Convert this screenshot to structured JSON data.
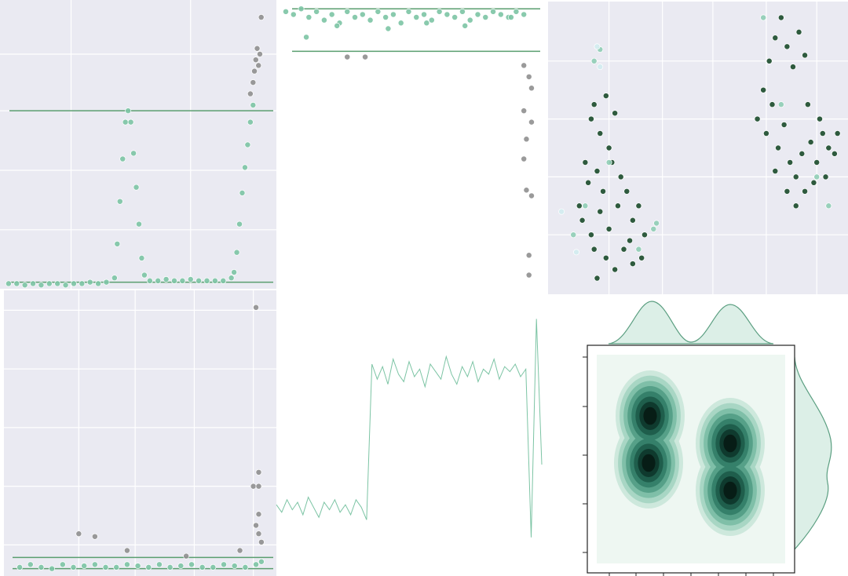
{
  "chart_data": [
    {
      "type": "scatter",
      "background": "#eaeaf2",
      "grid": true,
      "xlim": [
        0,
        100
      ],
      "ylim": [
        0,
        100
      ],
      "xticks": [
        25,
        69
      ],
      "yticks": [
        20,
        41,
        62,
        82
      ],
      "hlines": [
        62,
        1.5
      ],
      "hline_color": "#5a9e6f",
      "series": [
        {
          "color": "#7cc4a4",
          "x": [
            2,
            5,
            8,
            11,
            14,
            17,
            20,
            23,
            26,
            29,
            32,
            35,
            38,
            41,
            42,
            43,
            44,
            45,
            46,
            47,
            48,
            49,
            50,
            51,
            52,
            54,
            57,
            60,
            63,
            66,
            69,
            72,
            75,
            78,
            81,
            84,
            85,
            86,
            87,
            88,
            89,
            90,
            91,
            92
          ],
          "values": [
            1,
            1,
            0.5,
            1,
            0.5,
            1,
            1,
            0.5,
            1,
            1,
            1.5,
            1,
            1.5,
            3,
            15,
            30,
            45,
            58,
            62,
            58,
            47,
            35,
            22,
            10,
            4,
            2,
            2,
            2.5,
            2,
            2,
            2.5,
            2,
            2,
            2,
            2,
            3,
            5,
            12,
            22,
            33,
            42,
            50,
            58,
            64
          ]
        },
        {
          "color": "#8f8f8f",
          "x": [
            91,
            92,
            92.5,
            93,
            93.5,
            94,
            94.5,
            95
          ],
          "values": [
            68,
            72,
            76,
            80,
            84,
            78,
            82,
            95
          ]
        }
      ]
    },
    {
      "type": "scatter",
      "background": "#ffffff",
      "grid": false,
      "xlim": [
        0,
        100
      ],
      "ylim": [
        0,
        100
      ],
      "hlines": [
        98,
        83
      ],
      "hline_color": "#5a9e6f",
      "series": [
        {
          "color": "#7cc4a4",
          "x": [
            0,
            3,
            6,
            9,
            12,
            15,
            18,
            21,
            24,
            27,
            30,
            33,
            36,
            39,
            42,
            45,
            48,
            51,
            54,
            57,
            60,
            63,
            66,
            69,
            72,
            75,
            78,
            81,
            84,
            87,
            90,
            93,
            8,
            20,
            40,
            55,
            70,
            88
          ],
          "values": [
            97,
            96,
            98,
            95,
            97,
            94,
            96,
            93,
            97,
            95,
            96,
            94,
            97,
            95,
            96,
            93,
            97,
            95,
            96,
            94,
            97,
            96,
            95,
            97,
            94,
            96,
            95,
            97,
            96,
            95,
            97,
            96,
            88,
            92,
            91,
            93,
            92,
            95
          ]
        },
        {
          "color": "#8f8f8f",
          "x": [
            24,
            31,
            93,
            95,
            96,
            93,
            96,
            94,
            93,
            94,
            96,
            95,
            95
          ],
          "values": [
            81,
            81,
            78,
            74,
            70,
            62,
            58,
            52,
            45,
            34,
            32,
            11,
            4
          ]
        }
      ]
    },
    {
      "type": "scatter",
      "background": "#eaeaf2",
      "grid": true,
      "xlim": [
        0,
        100
      ],
      "ylim": [
        0,
        100
      ],
      "xticks": [
        20,
        38,
        55,
        73,
        90
      ],
      "yticks": [
        20,
        40,
        60,
        80
      ],
      "series": [
        {
          "color": "#1a4a2a",
          "x": [
            10,
            12,
            14,
            15,
            17,
            19,
            20,
            22,
            13,
            16,
            18,
            21,
            24,
            11,
            14,
            17,
            20,
            23,
            26,
            28,
            30,
            32,
            25,
            28,
            22,
            19,
            16,
            15,
            27,
            31
          ],
          "values": [
            30,
            45,
            60,
            65,
            55,
            68,
            50,
            62,
            38,
            42,
            35,
            45,
            40,
            25,
            20,
            28,
            22,
            30,
            35,
            25,
            30,
            20,
            15,
            10,
            8,
            12,
            5,
            15,
            18,
            12
          ]
        },
        {
          "color": "#1a4a2a",
          "x": [
            70,
            72,
            74,
            76,
            78,
            80,
            82,
            84,
            86,
            73,
            75,
            77,
            79,
            81,
            83,
            85,
            88,
            90,
            92,
            94,
            96,
            89,
            86,
            83,
            91,
            87,
            80,
            76,
            93,
            97
          ],
          "values": [
            60,
            70,
            80,
            88,
            95,
            85,
            78,
            90,
            82,
            55,
            65,
            50,
            58,
            45,
            40,
            48,
            52,
            45,
            55,
            50,
            48,
            38,
            35,
            30,
            60,
            65,
            35,
            42,
            40,
            55
          ]
        },
        {
          "color": "#8fcdb5",
          "x": [
            15,
            17,
            30,
            12,
            8,
            20,
            72,
            78,
            90,
            94,
            35,
            36
          ],
          "values": [
            80,
            84,
            15,
            30,
            20,
            45,
            95,
            65,
            40,
            30,
            22,
            24
          ]
        },
        {
          "color": "#d3ecef",
          "x": [
            16,
            17,
            4,
            9
          ],
          "values": [
            85,
            78,
            28,
            14
          ]
        }
      ]
    },
    {
      "type": "scatter",
      "background": "#eaeaf2",
      "grid": true,
      "xlim": [
        0,
        100
      ],
      "ylim": [
        0,
        100
      ],
      "xticks": [
        27,
        48,
        70,
        92
      ],
      "yticks": [
        10,
        31,
        52,
        73,
        94
      ],
      "hlines": [
        5.5,
        1.5
      ],
      "hline_color": "#5a9e6f",
      "series": [
        {
          "color": "#7cc4a4",
          "x": [
            5,
            9,
            13,
            17,
            21,
            25,
            29,
            33,
            37,
            41,
            45,
            49,
            53,
            57,
            61,
            65,
            69,
            73,
            77,
            81,
            85,
            89,
            93,
            95
          ],
          "values": [
            2,
            3,
            2,
            1.5,
            3,
            2,
            2.5,
            3,
            2,
            2,
            3,
            2.5,
            2,
            3,
            2,
            2.5,
            3,
            2,
            2,
            3,
            2.5,
            2,
            3,
            4
          ]
        },
        {
          "color": "#8f8f8f",
          "x": [
            27,
            33,
            45,
            67,
            87,
            93,
            94,
            92,
            94,
            93,
            94,
            94,
            95
          ],
          "values": [
            14,
            13,
            8,
            6,
            8,
            95,
            36,
            31,
            31,
            17,
            21,
            14,
            11
          ]
        }
      ]
    },
    {
      "type": "line",
      "background": "#ffffff",
      "grid": false,
      "xlim": [
        0,
        100
      ],
      "ylim": [
        0,
        100
      ],
      "series": [
        {
          "color": "#7cc4a4",
          "x": [
            0,
            2,
            4,
            6,
            8,
            10,
            12,
            14,
            16,
            18,
            20,
            22,
            24,
            26,
            28,
            30,
            32,
            34,
            36,
            38,
            40,
            42,
            44,
            46,
            48,
            50,
            52,
            54,
            56,
            58,
            60,
            62,
            64,
            66,
            68,
            70,
            72,
            74,
            76,
            78,
            80,
            82,
            84,
            86,
            88,
            90,
            92,
            94,
            96,
            98,
            100
          ],
          "values": [
            24,
            21,
            26,
            22,
            25,
            20,
            27,
            23,
            19,
            25,
            22,
            26,
            21,
            24,
            20,
            26,
            23,
            18,
            80,
            74,
            79,
            72,
            82,
            76,
            73,
            81,
            75,
            78,
            71,
            80,
            77,
            74,
            83,
            76,
            72,
            79,
            75,
            81,
            73,
            78,
            76,
            82,
            74,
            79,
            77,
            80,
            75,
            78,
            11,
            98,
            40
          ]
        }
      ]
    }
  ]
}
